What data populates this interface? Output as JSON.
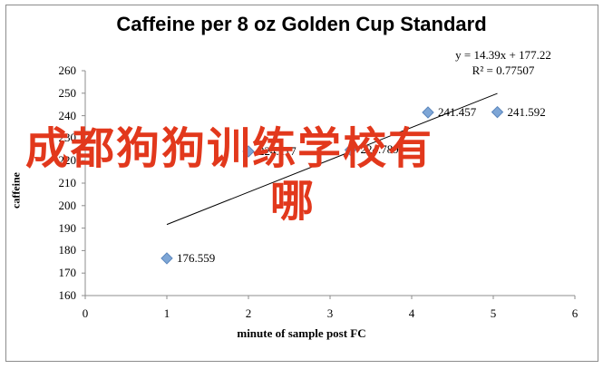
{
  "chart_data": {
    "type": "scatter",
    "title": "Caffeine per 8 oz Golden Cup Standard",
    "xlabel": "minute of sample post FC",
    "ylabel": "caffeine",
    "xlim": [
      0,
      6
    ],
    "ylim": [
      160,
      260
    ],
    "xticks": [
      "0",
      "1",
      "2",
      "3",
      "4",
      "5",
      "6"
    ],
    "yticks": [
      "160",
      "170",
      "180",
      "190",
      "200",
      "210",
      "220",
      "230",
      "240",
      "250",
      "260"
    ],
    "points": [
      {
        "x": 1,
        "y": 176.559,
        "label": "176.559"
      },
      {
        "x": 2,
        "y": 224.117,
        "label": "224.117"
      },
      {
        "x": 3.25,
        "y": 224.789,
        "label": "224.789"
      },
      {
        "x": 4.2,
        "y": 241.457,
        "label": "241.457"
      },
      {
        "x": 5.05,
        "y": 241.592,
        "label": "241.592"
      }
    ],
    "trendline": {
      "slope": 14.39,
      "intercept": 177.22,
      "x_range": [
        1,
        5.05
      ]
    },
    "equation": "y = 14.39x + 177.22",
    "r_squared": "R² = 0.77507",
    "grid": false,
    "legend": "none",
    "marker_color": "#7ea6d6",
    "line_color": "#000000"
  },
  "overlay_text": {
    "line1": "成都狗狗训练学校有",
    "line2": "哪"
  }
}
